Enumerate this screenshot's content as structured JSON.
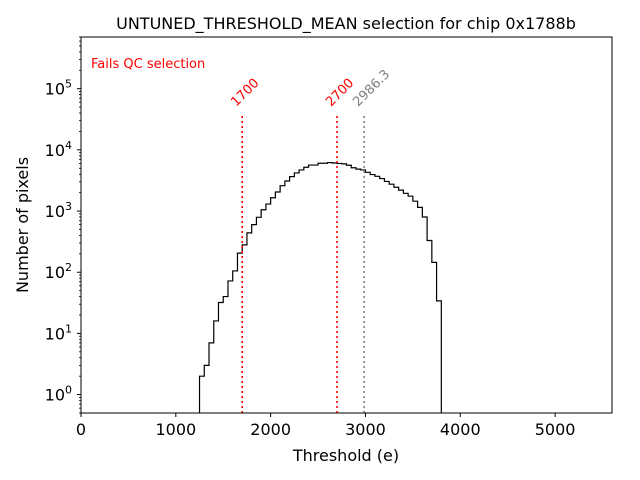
{
  "chart_data": {
    "type": "histogram",
    "title": "UNTUNED_THRESHOLD_MEAN selection for chip 0x1788b",
    "xlabel": "Threshold (e)",
    "ylabel": "Number of pixels",
    "xlim": [
      0,
      5600
    ],
    "ylim": [
      0.5,
      700000
    ],
    "yscale": "log",
    "x_ticks": [
      0,
      1000,
      2000,
      3000,
      4000,
      5000
    ],
    "x_tick_labels": [
      "0",
      "1000",
      "2000",
      "3000",
      "4000",
      "5000"
    ],
    "y_ticks": [
      {
        "value": 1,
        "base": "10",
        "exp": "0"
      },
      {
        "value": 10,
        "base": "10",
        "exp": "1"
      },
      {
        "value": 100,
        "base": "10",
        "exp": "2"
      },
      {
        "value": 1000,
        "base": "10",
        "exp": "3"
      },
      {
        "value": 10000,
        "base": "10",
        "exp": "4"
      },
      {
        "value": 100000,
        "base": "10",
        "exp": "5"
      }
    ],
    "bin_width": 50,
    "bins_start": 1250,
    "counts": [
      2,
      3,
      7,
      16,
      32,
      40,
      72,
      105,
      205,
      280,
      440,
      600,
      790,
      1050,
      1300,
      1650,
      2050,
      2600,
      3100,
      3650,
      4200,
      4700,
      5200,
      5650,
      5650,
      6050,
      6050,
      6200,
      6100,
      6000,
      5900,
      5600,
      5100,
      4850,
      4700,
      4300,
      3950,
      3700,
      3400,
      3050,
      2750,
      2450,
      2200,
      1950,
      1750,
      1450,
      1150,
      800,
      330,
      145,
      34
    ],
    "legend_text": "Fails QC selection",
    "legend_color": "#ff0000",
    "hist_color": "#000000",
    "cuts": [
      {
        "value": 1700,
        "label": "1700",
        "color": "#ff0000",
        "height_top": 40000
      },
      {
        "value": 2700,
        "label": "2700",
        "color": "#ff0000",
        "height_top": 40000
      },
      {
        "value": 2986.3,
        "label": "2986.3",
        "color": "#808080",
        "height_top": 40000
      }
    ]
  }
}
